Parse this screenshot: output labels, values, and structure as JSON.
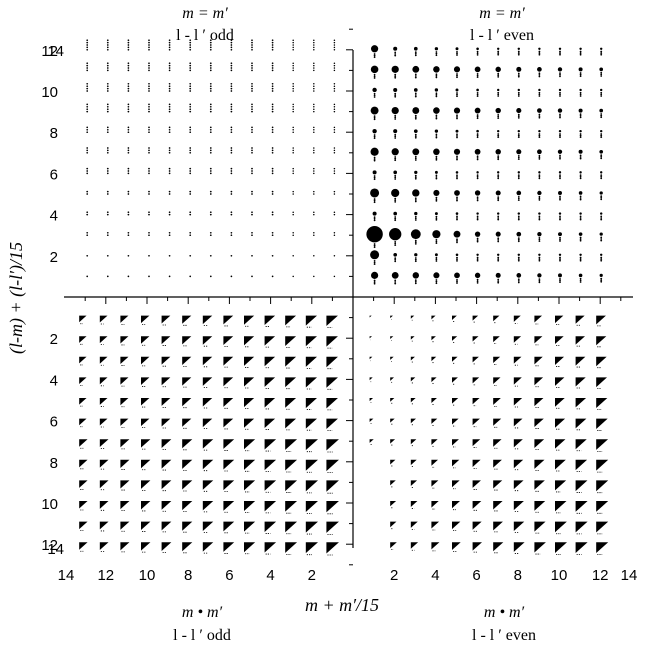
{
  "chart_data": {
    "type": "scatter",
    "xlabel": "m + m′/15",
    "ylabel": "(l-m) + (l-l′)/15",
    "ylim": [
      0,
      14
    ],
    "ticks": [
      "2",
      "4",
      "6",
      "8",
      "10",
      "12",
      "14"
    ],
    "grid": false,
    "quadrants": [
      {
        "id": "top-left",
        "cond": "m = m′",
        "parity": "l - l ′  odd"
      },
      {
        "id": "top-right",
        "cond": "m = m′",
        "parity": "l - l ′  even"
      },
      {
        "id": "bottom-left",
        "cond": "m • m′",
        "parity": "l - l ′  odd"
      },
      {
        "id": "bottom-right",
        "cond": "m • m′",
        "parity": "l - l ′  even"
      }
    ],
    "top_right_large_points": [
      {
        "x": 1,
        "y": 3,
        "size": 1.0
      },
      {
        "x": 1,
        "y": 2,
        "size": 0.55
      },
      {
        "x": 2,
        "y": 3,
        "size": 0.75
      },
      {
        "x": 3,
        "y": 3,
        "size": 0.6
      },
      {
        "x": 4,
        "y": 3,
        "size": 0.5
      },
      {
        "x": 5,
        "y": 3,
        "size": 0.42
      },
      {
        "x": 1,
        "y": 5,
        "size": 0.55
      },
      {
        "x": 2,
        "y": 5,
        "size": 0.5
      },
      {
        "x": 3,
        "y": 5,
        "size": 0.45
      },
      {
        "x": 1,
        "y": 7,
        "size": 0.5
      },
      {
        "x": 1,
        "y": 9,
        "size": 0.48
      },
      {
        "x": 1,
        "y": 11,
        "size": 0.46
      },
      {
        "x": 1,
        "y": 12,
        "size": 0.44
      }
    ]
  }
}
